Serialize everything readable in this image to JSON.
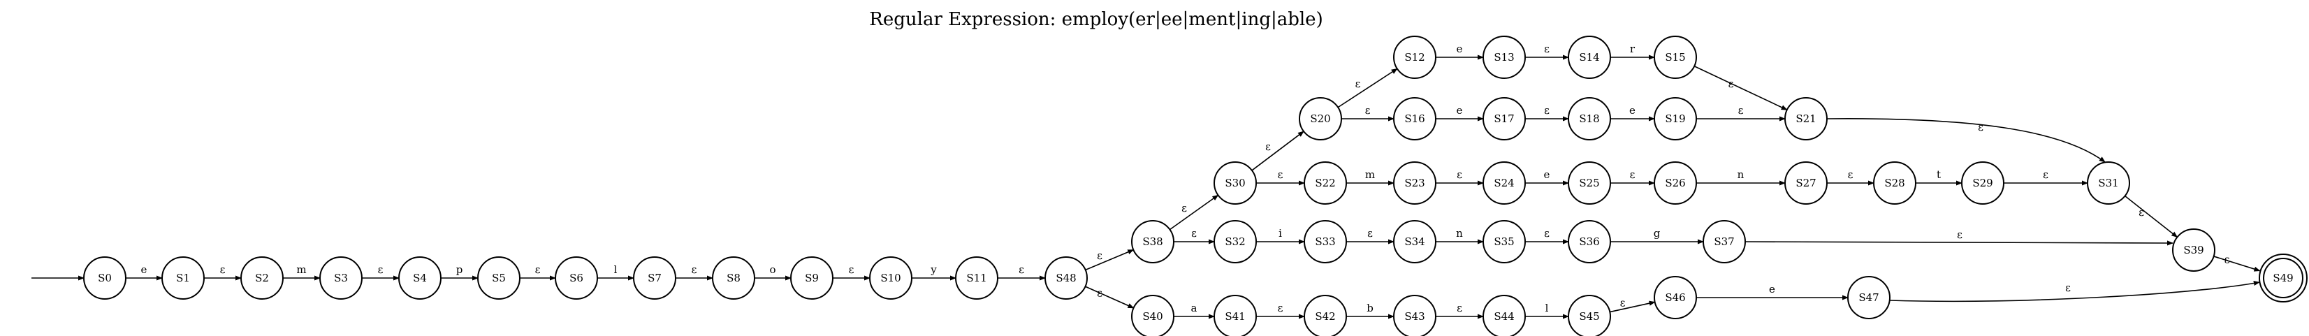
{
  "title": "Regular Expression: employ(er|ee|ment|ing|able)",
  "colors": {
    "stroke": "#000000",
    "background": "#ffffff"
  },
  "start_state": "S0",
  "accept_states": [
    "S49"
  ],
  "states": [
    "S0",
    "S1",
    "S2",
    "S3",
    "S4",
    "S5",
    "S6",
    "S7",
    "S8",
    "S9",
    "S10",
    "S11",
    "S48",
    "S38",
    "S32",
    "S40",
    "S30",
    "S20",
    "S22",
    "S12",
    "S16",
    "S13",
    "S14",
    "S15",
    "S17",
    "S18",
    "S19",
    "S21",
    "S23",
    "S24",
    "S25",
    "S26",
    "S27",
    "S28",
    "S29",
    "S31",
    "S33",
    "S34",
    "S35",
    "S36",
    "S37",
    "S39",
    "S41",
    "S42",
    "S43",
    "S44",
    "S45",
    "S46",
    "S47",
    "S49"
  ],
  "transitions": [
    {
      "from": "S0",
      "to": "S1",
      "label": "e"
    },
    {
      "from": "S1",
      "to": "S2",
      "label": "ε"
    },
    {
      "from": "S2",
      "to": "S3",
      "label": "m"
    },
    {
      "from": "S3",
      "to": "S4",
      "label": "ε"
    },
    {
      "from": "S4",
      "to": "S5",
      "label": "p"
    },
    {
      "from": "S5",
      "to": "S6",
      "label": "ε"
    },
    {
      "from": "S6",
      "to": "S7",
      "label": "l"
    },
    {
      "from": "S7",
      "to": "S8",
      "label": "ε"
    },
    {
      "from": "S8",
      "to": "S9",
      "label": "o"
    },
    {
      "from": "S9",
      "to": "S10",
      "label": "ε"
    },
    {
      "from": "S10",
      "to": "S11",
      "label": "y"
    },
    {
      "from": "S11",
      "to": "S48",
      "label": "ε"
    },
    {
      "from": "S48",
      "to": "S38",
      "label": "ε"
    },
    {
      "from": "S48",
      "to": "S40",
      "label": "ε"
    },
    {
      "from": "S38",
      "to": "S30",
      "label": "ε"
    },
    {
      "from": "S38",
      "to": "S32",
      "label": "ε"
    },
    {
      "from": "S30",
      "to": "S20",
      "label": "ε"
    },
    {
      "from": "S30",
      "to": "S22",
      "label": "ε"
    },
    {
      "from": "S20",
      "to": "S12",
      "label": "ε"
    },
    {
      "from": "S20",
      "to": "S16",
      "label": "ε"
    },
    {
      "from": "S12",
      "to": "S13",
      "label": "e"
    },
    {
      "from": "S13",
      "to": "S14",
      "label": "ε"
    },
    {
      "from": "S14",
      "to": "S15",
      "label": "r"
    },
    {
      "from": "S15",
      "to": "S21",
      "label": "ε"
    },
    {
      "from": "S16",
      "to": "S17",
      "label": "e"
    },
    {
      "from": "S17",
      "to": "S18",
      "label": "ε"
    },
    {
      "from": "S18",
      "to": "S19",
      "label": "e"
    },
    {
      "from": "S19",
      "to": "S21",
      "label": "ε"
    },
    {
      "from": "S21",
      "to": "S31",
      "label": "ε"
    },
    {
      "from": "S22",
      "to": "S23",
      "label": "m"
    },
    {
      "from": "S23",
      "to": "S24",
      "label": "ε"
    },
    {
      "from": "S24",
      "to": "S25",
      "label": "e"
    },
    {
      "from": "S25",
      "to": "S26",
      "label": "ε"
    },
    {
      "from": "S26",
      "to": "S27",
      "label": "n"
    },
    {
      "from": "S27",
      "to": "S28",
      "label": "ε"
    },
    {
      "from": "S28",
      "to": "S29",
      "label": "t"
    },
    {
      "from": "S29",
      "to": "S31",
      "label": "ε"
    },
    {
      "from": "S31",
      "to": "S39",
      "label": "ε"
    },
    {
      "from": "S32",
      "to": "S33",
      "label": "i"
    },
    {
      "from": "S33",
      "to": "S34",
      "label": "ε"
    },
    {
      "from": "S34",
      "to": "S35",
      "label": "n"
    },
    {
      "from": "S35",
      "to": "S36",
      "label": "ε"
    },
    {
      "from": "S36",
      "to": "S37",
      "label": "g"
    },
    {
      "from": "S37",
      "to": "S39",
      "label": "ε"
    },
    {
      "from": "S39",
      "to": "S49",
      "label": "ε"
    },
    {
      "from": "S40",
      "to": "S41",
      "label": "a"
    },
    {
      "from": "S41",
      "to": "S42",
      "label": "ε"
    },
    {
      "from": "S42",
      "to": "S43",
      "label": "b"
    },
    {
      "from": "S43",
      "to": "S44",
      "label": "ε"
    },
    {
      "from": "S44",
      "to": "S45",
      "label": "l"
    },
    {
      "from": "S45",
      "to": "S46",
      "label": "ε"
    },
    {
      "from": "S46",
      "to": "S47",
      "label": "e"
    },
    {
      "from": "S47",
      "to": "S49",
      "label": "ε"
    }
  ]
}
